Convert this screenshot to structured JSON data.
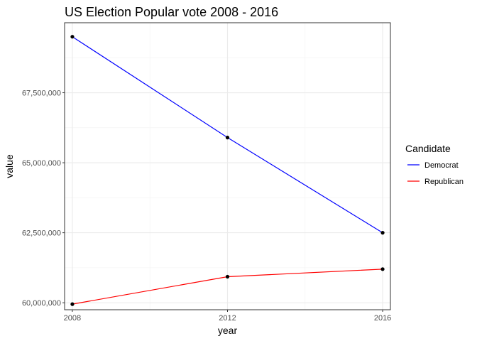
{
  "chart_data": {
    "type": "line",
    "title": "US Election Popular vote 2008 - 2016",
    "xlabel": "year",
    "ylabel": "value",
    "x": [
      2008,
      2012,
      2016
    ],
    "x_ticks": [
      "2008",
      "2012",
      "2016"
    ],
    "y_ticks": [
      "60,000,000",
      "62,500,000",
      "65,000,000",
      "67,500,000"
    ],
    "xlim": [
      2007.8,
      2016.2
    ],
    "ylim": [
      59750000,
      70000000
    ],
    "grid": true,
    "legend": {
      "title": "Candidate",
      "position": "right"
    },
    "series": [
      {
        "name": "Democrat",
        "color": "#0000ff",
        "values": [
          69500000,
          65900000,
          62500000
        ]
      },
      {
        "name": "Republican",
        "color": "#ff0000",
        "values": [
          59950000,
          60930000,
          61200000
        ]
      }
    ]
  }
}
